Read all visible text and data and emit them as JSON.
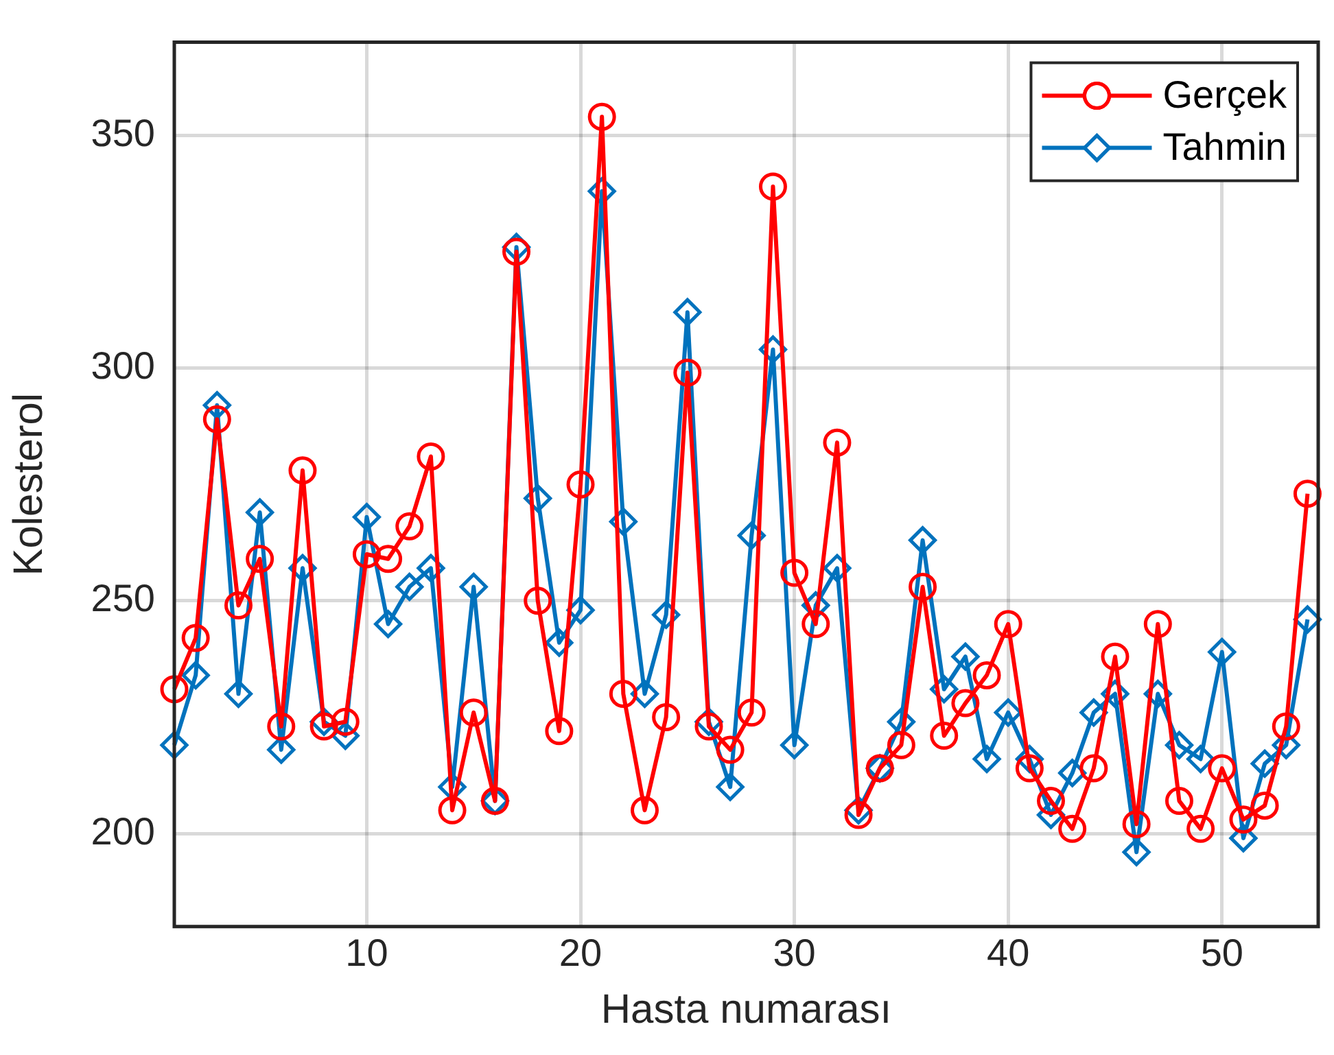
{
  "chart_data": {
    "type": "line",
    "xlabel": "Hasta numarası",
    "ylabel": "Kolesterol",
    "x": [
      1,
      2,
      3,
      4,
      5,
      6,
      7,
      8,
      9,
      10,
      11,
      12,
      13,
      14,
      15,
      16,
      17,
      18,
      19,
      20,
      21,
      22,
      23,
      24,
      25,
      26,
      27,
      28,
      29,
      30,
      31,
      32,
      33,
      34,
      35,
      36,
      37,
      38,
      39,
      40,
      41,
      42,
      43,
      44,
      45,
      46,
      47,
      48,
      49,
      50,
      51,
      52,
      53,
      54
    ],
    "series": [
      {
        "name": "Gerçek",
        "color": "#ff0000",
        "marker": "circle",
        "values": [
          231,
          242,
          289,
          249,
          259,
          223,
          278,
          223,
          224,
          260,
          259,
          266,
          281,
          205,
          226,
          207,
          325,
          250,
          222,
          275,
          354,
          230,
          205,
          225,
          299,
          223,
          218,
          226,
          339,
          256,
          245,
          284,
          204,
          214,
          219,
          253,
          221,
          228,
          234,
          245,
          214,
          207,
          201,
          214,
          238,
          202,
          245,
          207,
          201,
          214,
          203,
          206,
          223,
          273
        ]
      },
      {
        "name": "Tahmin",
        "color": "#0072bd",
        "marker": "diamond",
        "values": [
          219,
          234,
          292,
          230,
          269,
          218,
          257,
          224,
          221,
          268,
          245,
          253,
          257,
          210,
          253,
          207,
          326,
          272,
          241,
          248,
          338,
          267,
          230,
          247,
          312,
          224,
          210,
          264,
          304,
          219,
          249,
          257,
          205,
          214,
          224,
          263,
          231,
          238,
          216,
          226,
          216,
          204,
          213,
          226,
          230,
          196,
          230,
          219,
          216,
          239,
          199,
          215,
          219,
          246
        ]
      }
    ],
    "xlim": [
      1,
      54.5
    ],
    "xticks": [
      10,
      20,
      30,
      40,
      50
    ],
    "ylim": [
      180,
      370
    ],
    "yticks": [
      200,
      250,
      300,
      350
    ],
    "grid": true,
    "legend": "top right",
    "line_style": "solid"
  }
}
